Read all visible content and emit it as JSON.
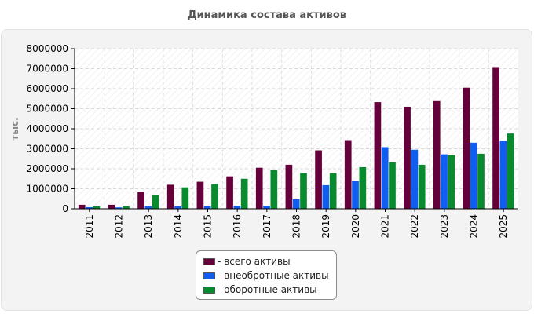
{
  "chart_data": {
    "type": "bar",
    "title": "Динамика состава активов",
    "ylabel": "тыс.",
    "xlabel": "",
    "categories": [
      "2011",
      "2012",
      "2013",
      "2014",
      "2015",
      "2016",
      "2017",
      "2018",
      "2019",
      "2020",
      "2021",
      "2022",
      "2023",
      "2024",
      "2025"
    ],
    "ylim": [
      0,
      8000000
    ],
    "yticks": [
      "0",
      "1000000",
      "2000000",
      "3000000",
      "4000000",
      "5000000",
      "6000000",
      "7000000",
      "8000000"
    ],
    "grid": true,
    "legend_position": "bottom-center",
    "series": [
      {
        "name": "- всего активы",
        "color": "#66003a",
        "values": [
          200000,
          200000,
          840000,
          1200000,
          1350000,
          1620000,
          2050000,
          2200000,
          2920000,
          3430000,
          5330000,
          5100000,
          5380000,
          6050000,
          7080000
        ]
      },
      {
        "name": "- внеобротные активы",
        "color": "#0f5ef0",
        "values": [
          80000,
          70000,
          130000,
          120000,
          120000,
          150000,
          150000,
          470000,
          1180000,
          1380000,
          3080000,
          2950000,
          2720000,
          3300000,
          3400000
        ]
      },
      {
        "name": "- оборотные активы",
        "color": "#0a8a2e",
        "values": [
          120000,
          130000,
          700000,
          1070000,
          1230000,
          1500000,
          1950000,
          1780000,
          1780000,
          2080000,
          2320000,
          2200000,
          2680000,
          2750000,
          3760000
        ]
      }
    ]
  }
}
